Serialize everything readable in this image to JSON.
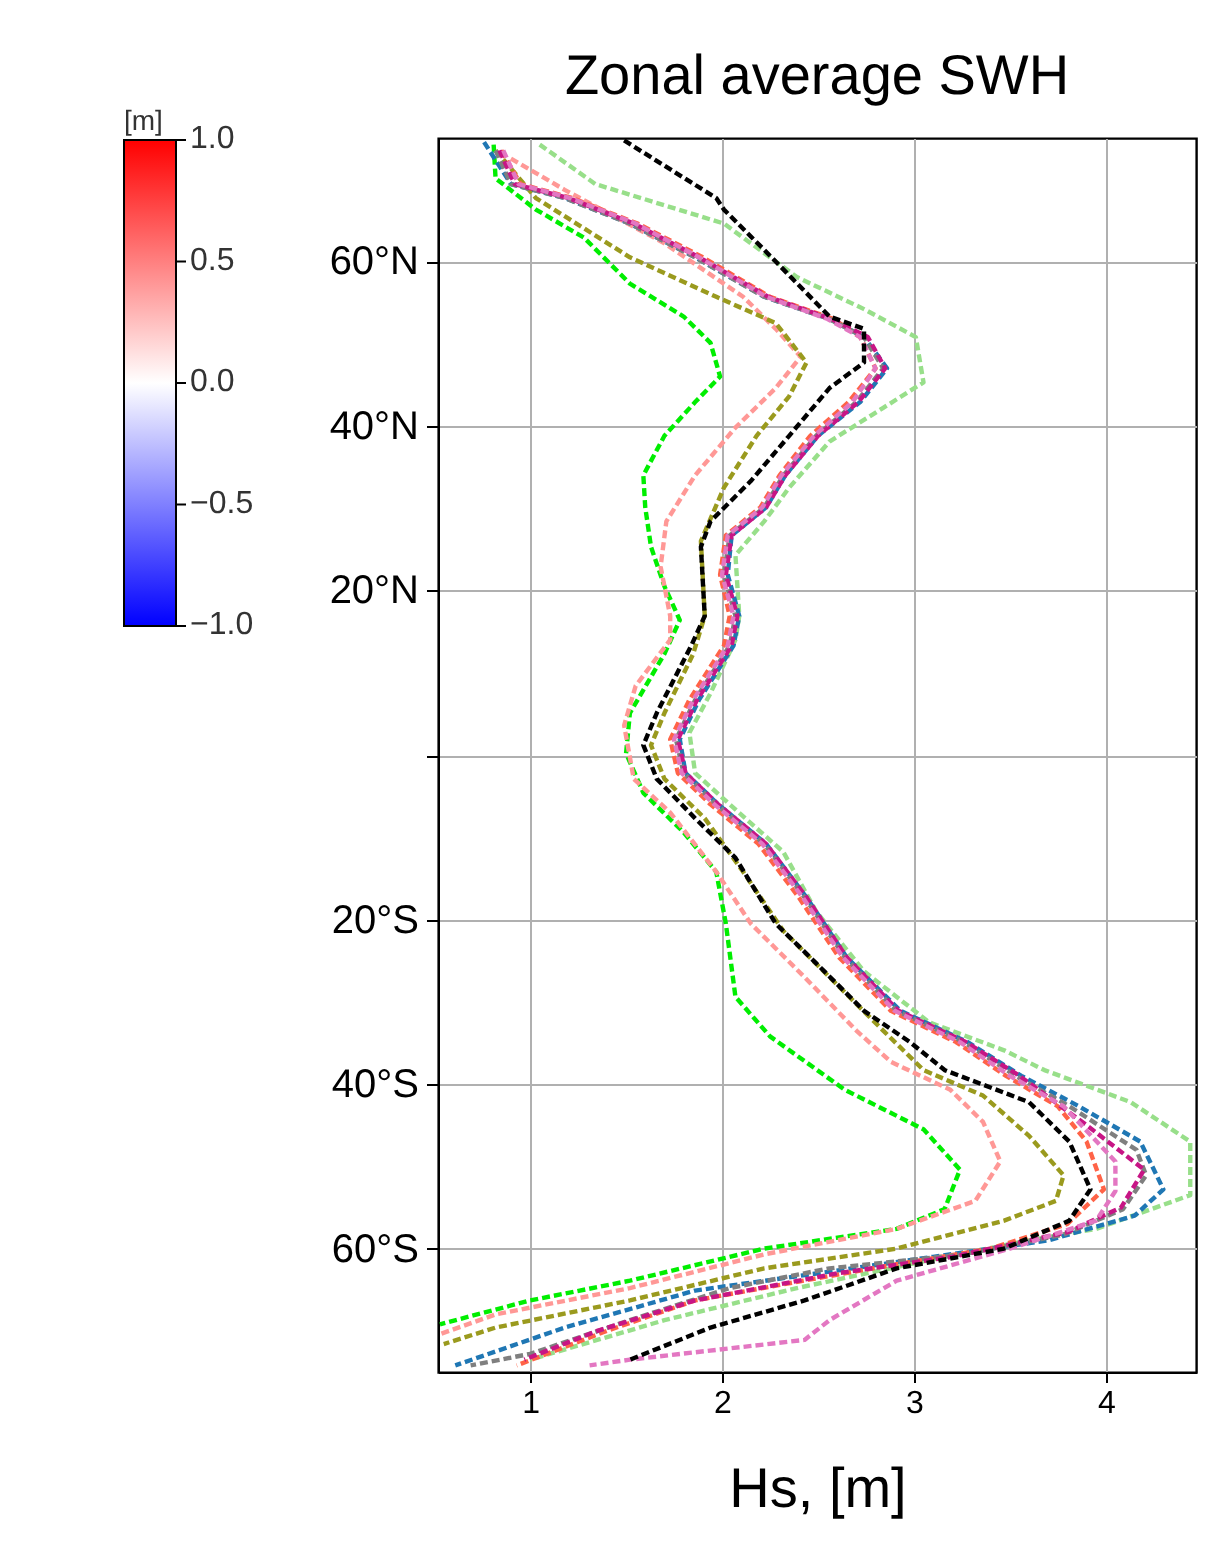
{
  "chart_data": {
    "type": "line",
    "title": "Zonal average SWH",
    "xlabel": "Hs, [m]",
    "clabel": "[m]",
    "clim": [
      -1,
      1
    ],
    "cticks": [
      {
        "value": -1,
        "label": "−1.0"
      },
      {
        "value": -0.5,
        "label": "−0.5"
      },
      {
        "value": 0,
        "label": "0.0"
      },
      {
        "value": 0.5,
        "label": "0.5"
      },
      {
        "value": 1,
        "label": "1.0"
      }
    ],
    "xlim": [
      0.52,
      4.47
    ],
    "xticks": [
      1,
      2,
      3,
      4
    ],
    "ylim": [
      -75,
      75
    ],
    "yticks": [
      {
        "value": -60,
        "label": "60°S"
      },
      {
        "value": -40,
        "label": "40°S"
      },
      {
        "value": -20,
        "label": "20°S"
      },
      {
        "value": 0,
        "label": null
      },
      {
        "value": 20,
        "label": "20°N"
      },
      {
        "value": 40,
        "label": "40°N"
      },
      {
        "value": 60,
        "label": "60°N"
      }
    ],
    "grid": true,
    "line_style": "dashed",
    "series": [
      {
        "color": "#00ee00",
        "x": [
          0.81,
          0.82,
          1.03,
          1.28,
          1.52,
          1.8,
          1.94,
          1.99,
          1.86,
          1.7,
          1.59,
          1.6,
          1.63,
          1.7,
          1.78,
          1.7,
          1.52,
          1.5,
          1.59,
          1.8,
          1.97,
          2.02,
          2.07,
          2.25,
          2.64,
          3.05,
          3.24,
          3.16,
          2.91,
          2.22,
          1.52,
          1.0,
          0.53
        ],
        "values": [
          74.2,
          70.1,
          66.3,
          62.9,
          57.3,
          53.3,
          50.1,
          46.0,
          42.9,
          38.8,
          34.0,
          30.1,
          25.3,
          20.5,
          16.4,
          12.3,
          5.1,
          0.2,
          -4.6,
          -9.4,
          -14.2,
          -20.5,
          -29.4,
          -34.2,
          -40.7,
          -45.5,
          -50.4,
          -55.2,
          -57.6,
          -60.0,
          -63.9,
          -66.3,
          -69.2
        ]
      },
      {
        "color": "#98df8a",
        "x": [
          1.05,
          1.34,
          2.01,
          2.39,
          2.74,
          3.01,
          3.05,
          2.84,
          2.56,
          2.35,
          2.22,
          2.07,
          2.09,
          2.07,
          1.94,
          1.83,
          1.86,
          2.04,
          2.32,
          2.49,
          2.74,
          3.08,
          3.47,
          3.68,
          4.13,
          4.44,
          4.44,
          3.95,
          3.6,
          3.08,
          2.39,
          1.7,
          1.0
        ],
        "values": [
          74.2,
          69.4,
          64.6,
          58.1,
          54.2,
          50.8,
          45.3,
          42.2,
          38.1,
          32.5,
          28.4,
          24.3,
          16.9,
          14.0,
          7.5,
          2.7,
          -2.2,
          -6.0,
          -11.8,
          -19.0,
          -26.3,
          -32.5,
          -35.9,
          -38.3,
          -42.2,
          -47.0,
          -53.5,
          -57.6,
          -59.0,
          -61.4,
          -64.8,
          -68.7,
          -73.5
        ]
      },
      {
        "color": "#ff9896",
        "x": [
          0.9,
          1.18,
          1.7,
          2.11,
          2.28,
          2.41,
          2.28,
          2.07,
          1.86,
          1.71,
          1.68,
          1.73,
          1.73,
          1.55,
          1.49,
          1.54,
          1.73,
          1.97,
          2.15,
          2.43,
          2.7,
          2.88,
          3.19,
          3.36,
          3.45,
          3.32,
          2.91,
          2.22,
          1.52,
          0.82,
          0.53
        ],
        "values": [
          72.5,
          68.7,
          62.2,
          55.7,
          51.8,
          48.4,
          44.6,
          39.8,
          34.0,
          28.4,
          22.9,
          16.9,
          14.0,
          8.4,
          3.6,
          -2.9,
          -7.0,
          -14.2,
          -20.5,
          -27.0,
          -33.5,
          -37.3,
          -40.7,
          -44.6,
          -49.4,
          -54.2,
          -57.6,
          -60.7,
          -64.8,
          -68.0,
          -70.4
        ]
      },
      {
        "color": "#9a9a1e",
        "x": [
          0.82,
          1.03,
          1.52,
          1.97,
          2.28,
          2.44,
          2.35,
          2.18,
          2.01,
          1.89,
          1.91,
          1.85,
          1.7,
          1.63,
          1.7,
          1.91,
          2.11,
          2.32,
          2.56,
          2.84,
          3.05,
          3.36,
          3.6,
          3.78,
          3.74,
          3.47,
          2.91,
          2.22,
          1.52,
          0.82,
          0.55
        ],
        "values": [
          73.5,
          67.7,
          60.5,
          55.7,
          52.5,
          47.7,
          43.6,
          38.8,
          32.5,
          26.0,
          16.9,
          12.3,
          5.1,
          1.2,
          -2.9,
          -7.7,
          -14.2,
          -21.4,
          -27.0,
          -33.5,
          -38.3,
          -41.4,
          -46.3,
          -51.1,
          -54.2,
          -56.6,
          -60.0,
          -62.4,
          -66.3,
          -69.6,
          -71.6
        ]
      },
      {
        "color": "#1f77b4",
        "x": [
          0.76,
          0.9,
          1.18,
          1.52,
          1.86,
          2.22,
          2.56,
          2.74,
          2.86,
          2.72,
          2.5,
          2.33,
          2.23,
          2.05,
          2.03,
          2.09,
          2.06,
          1.88,
          1.78,
          1.81,
          1.98,
          2.23,
          2.44,
          2.65,
          2.93,
          3.28,
          3.56,
          3.86,
          4.18,
          4.3,
          4.15,
          3.7,
          3.1,
          2.5,
          1.86,
          1.18,
          0.61
        ],
        "values": [
          74.5,
          69.4,
          67.7,
          64.6,
          60.5,
          55.7,
          53.0,
          50.8,
          47.0,
          42.9,
          38.8,
          34.0,
          30.1,
          26.7,
          21.9,
          16.9,
          13.3,
          6.7,
          1.9,
          -2.2,
          -6.0,
          -10.8,
          -17.3,
          -24.6,
          -31.1,
          -34.9,
          -39.0,
          -42.7,
          -47.0,
          -52.8,
          -56.0,
          -59.0,
          -61.0,
          -63.0,
          -65.1,
          -69.6,
          -74.2
        ]
      },
      {
        "color": "#ff6347",
        "x": [
          0.85,
          0.95,
          1.22,
          1.56,
          1.9,
          2.25,
          2.58,
          2.72,
          2.8,
          2.66,
          2.46,
          2.3,
          2.2,
          2.02,
          1.99,
          2.04,
          2.01,
          1.83,
          1.73,
          1.77,
          1.94,
          2.19,
          2.4,
          2.61,
          2.88,
          3.22,
          3.48,
          3.75,
          3.9,
          3.99,
          3.8,
          3.4,
          2.91,
          2.4,
          1.86,
          1.4,
          0.93
        ],
        "values": [
          73.5,
          69.4,
          67.7,
          64.6,
          60.5,
          55.7,
          53.0,
          50.8,
          47.0,
          42.9,
          38.8,
          34.0,
          30.1,
          26.7,
          21.9,
          16.9,
          13.3,
          6.7,
          1.9,
          -2.2,
          -6.0,
          -10.8,
          -17.3,
          -24.6,
          -31.1,
          -34.9,
          -39.0,
          -42.7,
          -47.0,
          -52.8,
          -57.0,
          -60.0,
          -61.9,
          -64.0,
          -66.3,
          -70.0,
          -74.2
        ]
      },
      {
        "color": "#7f7f7f",
        "x": [
          0.82,
          0.9,
          1.18,
          1.52,
          1.86,
          2.22,
          2.56,
          2.74,
          2.84,
          2.7,
          2.49,
          2.32,
          2.22,
          2.04,
          2.01,
          2.07,
          2.04,
          1.86,
          1.76,
          1.8,
          1.97,
          2.22,
          2.43,
          2.64,
          2.91,
          3.26,
          3.53,
          3.81,
          4.16,
          4.21,
          4.09,
          3.78,
          3.26,
          2.56,
          2.04,
          1.52,
          1.0,
          0.69
        ],
        "values": [
          73.5,
          69.4,
          67.7,
          64.6,
          60.5,
          55.7,
          53.0,
          50.8,
          47.0,
          42.9,
          38.8,
          34.0,
          30.1,
          26.7,
          21.9,
          16.9,
          13.3,
          6.7,
          1.9,
          -2.2,
          -6.0,
          -10.8,
          -17.3,
          -24.6,
          -31.1,
          -34.9,
          -39.0,
          -42.7,
          -48.0,
          -51.1,
          -55.2,
          -58.3,
          -60.7,
          -62.4,
          -64.8,
          -68.7,
          -72.8,
          -74.2
        ]
      },
      {
        "color": "#c71585",
        "x": [
          0.84,
          0.92,
          1.2,
          1.54,
          1.88,
          2.24,
          2.57,
          2.76,
          2.85,
          2.71,
          2.5,
          2.33,
          2.23,
          2.05,
          2.02,
          2.08,
          2.05,
          1.87,
          1.77,
          1.81,
          1.98,
          2.23,
          2.44,
          2.65,
          2.92,
          3.27,
          3.55,
          3.9,
          4.2,
          4.08,
          3.8,
          3.2,
          2.6,
          1.86,
          1.35,
          0.97
        ],
        "values": [
          73.5,
          69.4,
          67.7,
          64.6,
          60.5,
          55.7,
          53.0,
          50.8,
          47.0,
          42.9,
          38.8,
          34.0,
          30.1,
          26.7,
          21.9,
          16.9,
          13.3,
          6.7,
          1.9,
          -2.2,
          -6.0,
          -10.8,
          -17.3,
          -24.6,
          -31.1,
          -34.9,
          -39.0,
          -45.0,
          -50.4,
          -55.0,
          -58.0,
          -61.0,
          -63.0,
          -66.3,
          -70.0,
          -73.5
        ]
      },
      {
        "color": "#e377c2",
        "x": [
          0.86,
          0.94,
          1.21,
          1.55,
          1.88,
          2.23,
          2.55,
          2.72,
          2.8,
          2.68,
          2.48,
          2.31,
          2.21,
          2.03,
          2.0,
          2.06,
          2.03,
          1.85,
          1.75,
          1.79,
          1.96,
          2.21,
          2.42,
          2.63,
          2.9,
          3.24,
          3.5,
          3.78,
          4.05,
          4.05,
          3.95,
          3.5,
          2.91,
          2.56,
          2.43,
          1.52,
          1.31
        ],
        "values": [
          73.5,
          69.4,
          67.7,
          64.6,
          60.5,
          55.7,
          53.0,
          50.8,
          47.0,
          42.9,
          38.8,
          34.0,
          30.1,
          26.7,
          21.9,
          16.9,
          13.3,
          6.7,
          1.9,
          -2.2,
          -6.0,
          -10.8,
          -17.3,
          -24.6,
          -31.1,
          -34.9,
          -39.0,
          -42.7,
          -49.4,
          -53.0,
          -56.6,
          -60.0,
          -63.9,
          -68.7,
          -71.1,
          -73.5,
          -74.2
        ]
      },
      {
        "color": "#000000",
        "x": [
          1.49,
          1.97,
          2.01,
          2.22,
          2.56,
          2.74,
          2.74,
          2.56,
          2.35,
          2.15,
          1.94,
          1.89,
          1.91,
          1.84,
          1.66,
          1.59,
          1.66,
          1.86,
          2.07,
          2.28,
          2.49,
          2.74,
          2.98,
          3.16,
          3.6,
          3.81,
          3.92,
          3.81,
          3.47,
          2.91,
          2.43,
          1.94,
          1.52
        ],
        "values": [
          74.7,
          67.7,
          66.3,
          61.4,
          53.3,
          51.8,
          47.7,
          44.6,
          38.8,
          33.3,
          28.4,
          25.3,
          16.9,
          13.3,
          5.1,
          1.2,
          -2.9,
          -7.7,
          -12.5,
          -20.5,
          -25.3,
          -31.1,
          -34.9,
          -38.3,
          -42.2,
          -47.0,
          -52.8,
          -56.6,
          -60.0,
          -62.4,
          -66.3,
          -69.6,
          -73.5
        ]
      }
    ]
  }
}
